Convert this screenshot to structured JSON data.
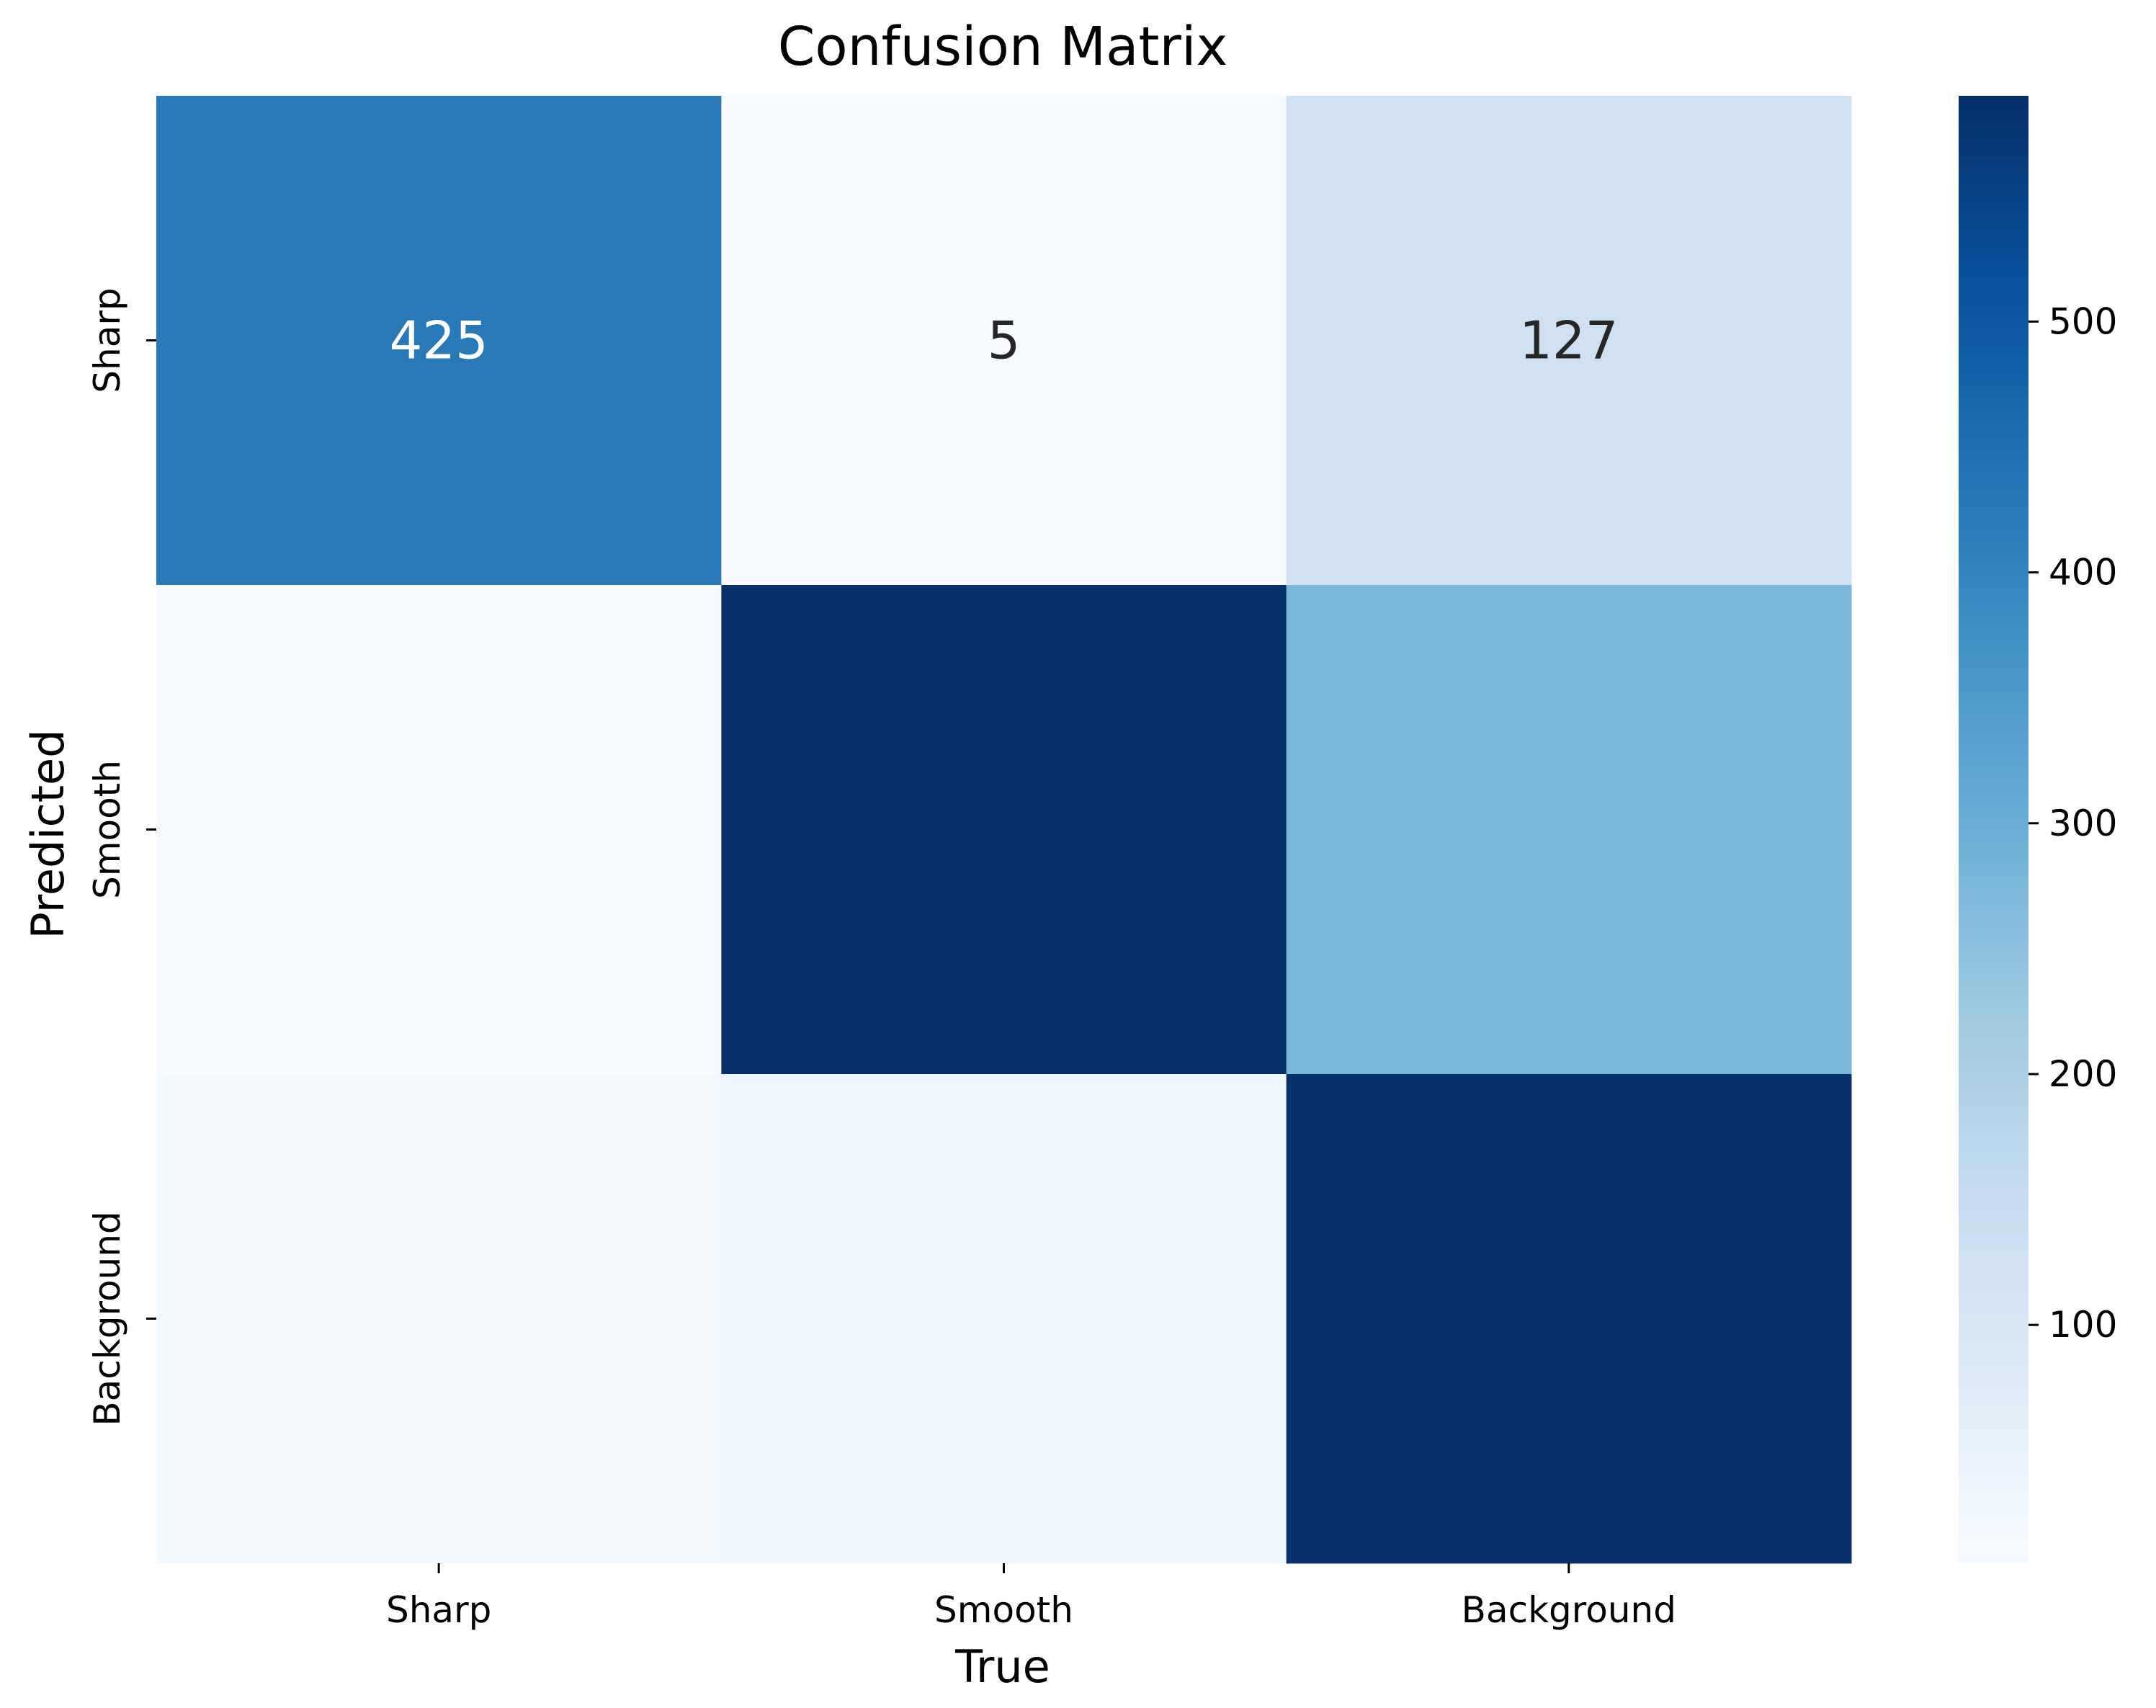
{
  "chart_data": {
    "type": "heatmap",
    "title": "Confusion Matrix",
    "xlabel": "True",
    "ylabel": "Predicted",
    "x_categories": [
      "Sharp",
      "Smooth",
      "Background"
    ],
    "y_categories": [
      "Sharp",
      "Smooth",
      "Background"
    ],
    "values": [
      [
        425,
        5,
        127
      ],
      [
        5,
        590,
        275
      ],
      [
        14,
        26,
        590
      ]
    ],
    "annotations": [
      [
        "425",
        "5",
        "127"
      ],
      [
        "",
        "",
        ""
      ],
      [
        "",
        "",
        ""
      ]
    ],
    "colormap": "Blues",
    "color_range": [
      5,
      590
    ],
    "colorbar_ticks": [
      100,
      200,
      300,
      400,
      500
    ],
    "grid": false,
    "legend": "colorbar-right"
  }
}
